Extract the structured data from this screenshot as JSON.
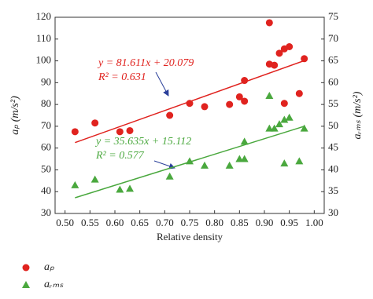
{
  "chart_data": {
    "type": "scatter",
    "xlabel": "Relative density",
    "ylabel": "aₚ (m/s²)",
    "y2label": "aᵣₘₛ (m/s²)",
    "xlim": [
      0.48,
      1.02
    ],
    "ylim": [
      30,
      120
    ],
    "y2lim": [
      30,
      75
    ],
    "xticks": [
      {
        "value": 0.5,
        "label": "0.50"
      },
      {
        "value": 0.55,
        "label": "0.55"
      },
      {
        "value": 0.6,
        "label": "0.60"
      },
      {
        "value": 0.65,
        "label": "0.65"
      },
      {
        "value": 0.7,
        "label": "0.70"
      },
      {
        "value": 0.75,
        "label": "0.75"
      },
      {
        "value": 0.8,
        "label": "0.80"
      },
      {
        "value": 0.85,
        "label": "0.85"
      },
      {
        "value": 0.9,
        "label": "0.90"
      },
      {
        "value": 0.95,
        "label": "0.95"
      },
      {
        "value": 1.0,
        "label": "1.00"
      }
    ],
    "yticks": [
      30,
      40,
      50,
      60,
      70,
      80,
      90,
      100,
      110,
      120
    ],
    "y2ticks": [
      30,
      35,
      40,
      45,
      50,
      55,
      60,
      65,
      70,
      75
    ],
    "series": [
      {
        "name": "aₚ",
        "color": "#e0231f",
        "marker": "circle",
        "x": [
          0.52,
          0.56,
          0.61,
          0.63,
          0.71,
          0.75,
          0.78,
          0.83,
          0.85,
          0.86,
          0.86,
          0.91,
          0.91,
          0.92,
          0.93,
          0.94,
          0.94,
          0.95,
          0.97,
          0.98
        ],
        "values": [
          67.5,
          71.5,
          67.5,
          68,
          75,
          80.5,
          79,
          80,
          83.5,
          81.5,
          91,
          117.5,
          98.5,
          98,
          103.5,
          105.5,
          80.5,
          106.5,
          85,
          101
        ]
      },
      {
        "name": "aᵣₘₛ",
        "color": "#4aa83e",
        "marker": "triangle",
        "axis": "y2",
        "x": [
          0.52,
          0.56,
          0.61,
          0.63,
          0.71,
          0.75,
          0.78,
          0.83,
          0.85,
          0.86,
          0.86,
          0.91,
          0.91,
          0.92,
          0.93,
          0.94,
          0.94,
          0.95,
          0.97,
          0.98
        ],
        "values": [
          36.5,
          37.8,
          35.5,
          35.7,
          38.5,
          42,
          41,
          41,
          42.5,
          42.5,
          46.5,
          57,
          49.5,
          49.5,
          50.5,
          51.5,
          41.5,
          52,
          42,
          49.5
        ]
      }
    ],
    "fits": [
      {
        "color": "#e0231f",
        "x": [
          0.52,
          0.98
        ],
        "values": [
          62.5,
          100.1
        ],
        "equation": "y = 81.611x + 20.079",
        "r2": "R² = 0.631"
      },
      {
        "color": "#4aa83e",
        "axis": "y2",
        "x": [
          0.52,
          0.98
        ],
        "values": [
          33.6,
          50.0
        ],
        "equation": "y = 35.635x + 15.112",
        "r2": "R² = 0.577"
      }
    ]
  }
}
